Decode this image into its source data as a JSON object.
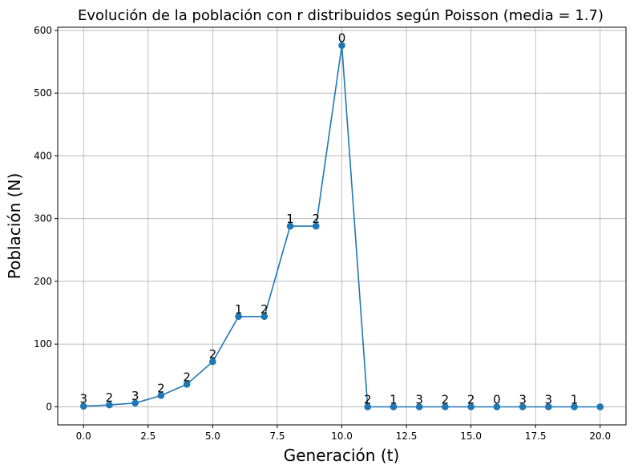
{
  "chart_data": {
    "type": "line",
    "title": "Evolución de la población con r distribuidos según Poisson (media = 1.7)",
    "xlabel": "Generación (t)",
    "ylabel": "Población (N)",
    "xlim": [
      -1.0,
      21.0
    ],
    "ylim": [
      -28.8,
      605.0
    ],
    "x_ticks": [
      0.0,
      2.5,
      5.0,
      7.5,
      10.0,
      12.5,
      15.0,
      17.5,
      20.0
    ],
    "x_tick_labels": [
      "0.0",
      "2.5",
      "5.0",
      "7.5",
      "10.0",
      "12.5",
      "15.0",
      "17.5",
      "20.0"
    ],
    "y_ticks": [
      0,
      100,
      200,
      300,
      400,
      500,
      600
    ],
    "y_tick_labels": [
      "0",
      "100",
      "200",
      "300",
      "400",
      "500",
      "600"
    ],
    "grid": true,
    "color": "#1f77b4",
    "series": [
      {
        "x": [
          0,
          1,
          2,
          3,
          4,
          5,
          6,
          7,
          8,
          9,
          10,
          11,
          12,
          13,
          14,
          15,
          16,
          17,
          18,
          19,
          20
        ],
        "y": [
          1,
          3,
          6,
          18,
          36,
          72,
          144,
          144,
          288,
          288,
          576,
          0,
          0,
          0,
          0,
          0,
          0,
          0,
          0,
          0,
          0
        ]
      }
    ],
    "point_labels": [
      "3",
      "2",
      "3",
      "2",
      "2",
      "2",
      "1",
      "2",
      "1",
      "2",
      "0",
      "2",
      "1",
      "3",
      "2",
      "2",
      "0",
      "3",
      "3",
      "1"
    ]
  }
}
